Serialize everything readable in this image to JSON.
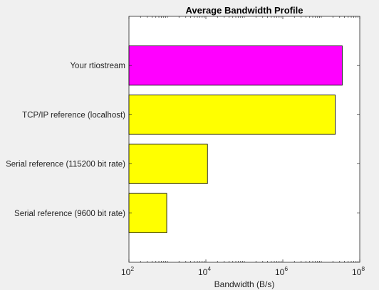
{
  "chart_data": {
    "type": "bar",
    "orientation": "horizontal",
    "title": "Average Bandwidth Profile",
    "xlabel": "Bandwidth (B/s)",
    "ylabel": "",
    "x_scale": "log",
    "xlim": [
      100,
      100000000
    ],
    "x_ticks": [
      {
        "base": "10",
        "exp": "2"
      },
      {
        "base": "10",
        "exp": "4"
      },
      {
        "base": "10",
        "exp": "6"
      },
      {
        "base": "10",
        "exp": "8"
      }
    ],
    "categories": [
      "Your rtiostream",
      "TCP/IP reference (localhost)",
      "Serial reference (115200 bit rate)",
      "Serial reference (9600 bit rate)"
    ],
    "values": [
      35000000,
      23000000,
      11000,
      960
    ],
    "bar_colors": [
      "#ff00ff",
      "#ffff00",
      "#ffff00",
      "#ffff00"
    ],
    "grid": false,
    "legend": "none"
  }
}
